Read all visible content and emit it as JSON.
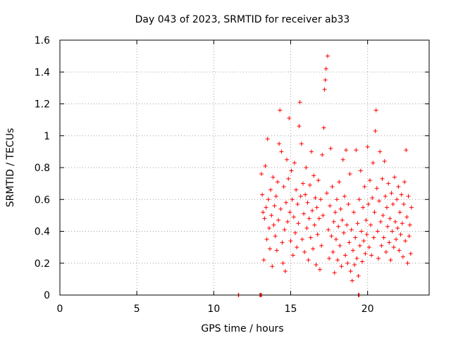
{
  "chart_data": {
    "type": "scatter",
    "title": "Day 043 of 2023, SRMTID for receiver ab33",
    "xlabel": "GPS time / hours",
    "ylabel": "SRMTID / TECUs",
    "xlim": [
      0,
      24
    ],
    "ylim": [
      0,
      1.6
    ],
    "x_ticks": [
      0,
      5,
      10,
      15,
      20
    ],
    "x_tick_labels": [
      "0",
      "5",
      "10",
      "15",
      "20"
    ],
    "y_ticks": [
      0,
      0.2,
      0.4,
      0.6,
      0.8,
      1.0,
      1.2,
      1.4,
      1.6
    ],
    "y_tick_labels": [
      "0",
      "0.2",
      "0.4",
      "0.6",
      "0.8",
      "1",
      "1.2",
      "1.4",
      "1.6"
    ],
    "grid": true,
    "marker": "+",
    "color": "#ff0000",
    "series": [
      {
        "name": "SRMTID",
        "points": [
          [
            11.6,
            0.0
          ],
          [
            11.62,
            0.0
          ],
          [
            13.0,
            0.0
          ],
          [
            13.05,
            0.0
          ],
          [
            13.1,
            0.0
          ],
          [
            19.4,
            0.0
          ],
          [
            19.45,
            0.0
          ],
          [
            13.1,
            0.76
          ],
          [
            13.15,
            0.63
          ],
          [
            13.2,
            0.52
          ],
          [
            13.25,
            0.22
          ],
          [
            13.3,
            0.48
          ],
          [
            13.35,
            0.81
          ],
          [
            13.4,
            0.55
          ],
          [
            13.45,
            0.35
          ],
          [
            13.5,
            0.98
          ],
          [
            13.55,
            0.6
          ],
          [
            13.6,
            0.42
          ],
          [
            13.65,
            0.29
          ],
          [
            13.7,
            0.66
          ],
          [
            13.75,
            0.5
          ],
          [
            13.8,
            0.18
          ],
          [
            13.85,
            0.74
          ],
          [
            13.9,
            0.44
          ],
          [
            13.95,
            0.56
          ],
          [
            14.0,
            0.37
          ],
          [
            14.05,
            0.62
          ],
          [
            14.1,
            0.28
          ],
          [
            14.15,
            0.71
          ],
          [
            14.2,
            0.47
          ],
          [
            14.25,
            0.95
          ],
          [
            14.3,
            1.16
          ],
          [
            14.35,
            0.54
          ],
          [
            14.4,
            0.9
          ],
          [
            14.45,
            0.33
          ],
          [
            14.5,
            0.2
          ],
          [
            14.55,
            0.68
          ],
          [
            14.6,
            0.41
          ],
          [
            14.65,
            0.15
          ],
          [
            14.7,
            0.58
          ],
          [
            14.75,
            0.85
          ],
          [
            14.8,
            0.46
          ],
          [
            14.85,
            0.73
          ],
          [
            14.9,
            1.11
          ],
          [
            14.95,
            0.52
          ],
          [
            15.0,
            0.34
          ],
          [
            15.05,
            0.78
          ],
          [
            15.1,
            0.6
          ],
          [
            15.15,
            0.25
          ],
          [
            15.2,
            0.49
          ],
          [
            15.25,
            0.83
          ],
          [
            15.3,
            0.39
          ],
          [
            15.35,
            0.66
          ],
          [
            15.4,
            0.3
          ],
          [
            15.45,
            0.57
          ],
          [
            15.5,
            0.45
          ],
          [
            15.55,
            1.06
          ],
          [
            15.6,
            1.21
          ],
          [
            15.65,
            0.62
          ],
          [
            15.7,
            0.95
          ],
          [
            15.75,
            0.35
          ],
          [
            15.8,
            0.7
          ],
          [
            15.85,
            0.51
          ],
          [
            15.9,
            0.27
          ],
          [
            15.95,
            0.63
          ],
          [
            16.0,
            0.8
          ],
          [
            16.05,
            0.42
          ],
          [
            16.1,
            0.58
          ],
          [
            16.15,
            0.22
          ],
          [
            16.2,
            0.48
          ],
          [
            16.25,
            0.69
          ],
          [
            16.3,
            0.36
          ],
          [
            16.35,
            0.9
          ],
          [
            16.4,
            0.53
          ],
          [
            16.45,
            0.29
          ],
          [
            16.5,
            0.75
          ],
          [
            16.55,
            0.44
          ],
          [
            16.6,
            0.61
          ],
          [
            16.65,
            0.19
          ],
          [
            16.7,
            0.55
          ],
          [
            16.75,
            0.38
          ],
          [
            16.8,
            0.72
          ],
          [
            16.85,
            0.48
          ],
          [
            16.9,
            0.16
          ],
          [
            16.95,
            0.6
          ],
          [
            17.0,
            0.31
          ],
          [
            17.05,
            0.88
          ],
          [
            17.1,
            0.5
          ],
          [
            17.15,
            1.05
          ],
          [
            17.2,
            1.29
          ],
          [
            17.25,
            1.35
          ],
          [
            17.3,
            1.42
          ],
          [
            17.35,
            0.64
          ],
          [
            17.4,
            1.5
          ],
          [
            17.45,
            0.41
          ],
          [
            17.5,
            0.23
          ],
          [
            17.55,
            0.56
          ],
          [
            17.6,
            0.92
          ],
          [
            17.65,
            0.37
          ],
          [
            17.7,
            0.68
          ],
          [
            17.75,
            0.27
          ],
          [
            17.8,
            0.46
          ],
          [
            17.85,
            0.14
          ],
          [
            17.9,
            0.52
          ],
          [
            17.95,
            0.35
          ],
          [
            18.0,
            0.6
          ],
          [
            18.05,
            0.22
          ],
          [
            18.1,
            0.43
          ],
          [
            18.15,
            0.71
          ],
          [
            18.2,
            0.31
          ],
          [
            18.25,
            0.54
          ],
          [
            18.3,
            0.18
          ],
          [
            18.35,
            0.47
          ],
          [
            18.4,
            0.85
          ],
          [
            18.45,
            0.39
          ],
          [
            18.5,
            0.62
          ],
          [
            18.55,
            0.25
          ],
          [
            18.6,
            0.91
          ],
          [
            18.65,
            0.44
          ],
          [
            18.7,
            0.2
          ],
          [
            18.75,
            0.57
          ],
          [
            18.8,
            0.33
          ],
          [
            18.85,
            0.76
          ],
          [
            18.9,
            0.15
          ],
          [
            18.95,
            0.41
          ],
          [
            19.0,
            0.09
          ],
          [
            19.05,
            0.28
          ],
          [
            19.1,
            0.52
          ],
          [
            19.15,
            0.19
          ],
          [
            19.2,
            0.36
          ],
          [
            19.25,
            0.91
          ],
          [
            19.3,
            0.23
          ],
          [
            19.35,
            0.45
          ],
          [
            19.4,
            0.12
          ],
          [
            19.45,
            0.6
          ],
          [
            19.5,
            0.31
          ],
          [
            19.55,
            0.78
          ],
          [
            19.6,
            0.4
          ],
          [
            19.65,
            0.21
          ],
          [
            19.7,
            0.55
          ],
          [
            19.75,
            0.34
          ],
          [
            19.8,
            0.68
          ],
          [
            19.85,
            0.26
          ],
          [
            19.9,
            0.47
          ],
          [
            19.95,
            0.38
          ],
          [
            20.0,
            0.93
          ],
          [
            20.05,
            0.57
          ],
          [
            20.1,
            0.3
          ],
          [
            20.15,
            0.72
          ],
          [
            20.2,
            0.44
          ],
          [
            20.25,
            0.25
          ],
          [
            20.3,
            0.61
          ],
          [
            20.35,
            0.83
          ],
          [
            20.4,
            0.36
          ],
          [
            20.45,
            0.52
          ],
          [
            20.5,
            1.03
          ],
          [
            20.55,
            1.16
          ],
          [
            20.6,
            0.67
          ],
          [
            20.65,
            0.4
          ],
          [
            20.7,
            0.23
          ],
          [
            20.75,
            0.59
          ],
          [
            20.8,
            0.9
          ],
          [
            20.85,
            0.46
          ],
          [
            20.9,
            0.31
          ],
          [
            20.95,
            0.73
          ],
          [
            21.0,
            0.5
          ],
          [
            21.05,
            0.36
          ],
          [
            21.1,
            0.84
          ],
          [
            21.15,
            0.62
          ],
          [
            21.2,
            0.27
          ],
          [
            21.25,
            0.55
          ],
          [
            21.3,
            0.43
          ],
          [
            21.35,
            0.7
          ],
          [
            21.4,
            0.33
          ],
          [
            21.45,
            0.48
          ],
          [
            21.5,
            0.22
          ],
          [
            21.55,
            0.64
          ],
          [
            21.6,
            0.4
          ],
          [
            21.65,
            0.57
          ],
          [
            21.7,
            0.3
          ],
          [
            21.75,
            0.74
          ],
          [
            21.8,
            0.46
          ],
          [
            21.85,
            0.35
          ],
          [
            21.9,
            0.6
          ],
          [
            21.95,
            0.42
          ],
          [
            22.0,
            0.68
          ],
          [
            22.05,
            0.28
          ],
          [
            22.1,
            0.52
          ],
          [
            22.15,
            0.38
          ],
          [
            22.2,
            0.63
          ],
          [
            22.25,
            0.45
          ],
          [
            22.3,
            0.24
          ],
          [
            22.35,
            0.57
          ],
          [
            22.4,
            0.71
          ],
          [
            22.45,
            0.34
          ],
          [
            22.5,
            0.91
          ],
          [
            22.55,
            0.49
          ],
          [
            22.6,
            0.2
          ],
          [
            22.65,
            0.62
          ],
          [
            22.7,
            0.37
          ],
          [
            22.75,
            0.44
          ],
          [
            22.8,
            0.26
          ],
          [
            22.85,
            0.55
          ]
        ]
      }
    ]
  }
}
